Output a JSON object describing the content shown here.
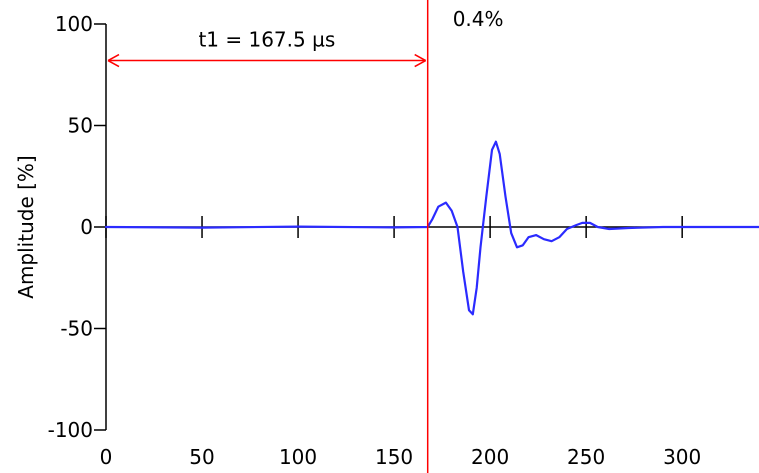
{
  "chart_data": {
    "type": "line",
    "title": "",
    "xlabel": "",
    "ylabel": "Amplitude [%]",
    "xlim": [
      0,
      340
    ],
    "ylim": [
      -100,
      100
    ],
    "x_ticks": [
      0,
      50,
      100,
      150,
      200,
      250,
      300
    ],
    "y_ticks": [
      -100,
      -50,
      0,
      50,
      100
    ],
    "x_tick_labels": [
      "0",
      "50",
      "100",
      "150",
      "200",
      "250",
      "300"
    ],
    "y_tick_labels": [
      "-100",
      "-50",
      "0",
      "50",
      "100"
    ],
    "grid": false,
    "series": [
      {
        "color": "#2b2bff",
        "points": [
          [
            0,
            0
          ],
          [
            50,
            -0.3
          ],
          [
            100,
            0.2
          ],
          [
            150,
            -0.2
          ],
          [
            167.5,
            0
          ],
          [
            170,
            4
          ],
          [
            173,
            10
          ],
          [
            177,
            12
          ],
          [
            180,
            8
          ],
          [
            183,
            0
          ],
          [
            186,
            -22
          ],
          [
            189,
            -41
          ],
          [
            191,
            -43
          ],
          [
            193,
            -30
          ],
          [
            195,
            -10
          ],
          [
            198,
            15
          ],
          [
            201,
            38
          ],
          [
            203,
            42
          ],
          [
            205,
            36
          ],
          [
            208,
            15
          ],
          [
            211,
            -3
          ],
          [
            214,
            -10
          ],
          [
            217,
            -9
          ],
          [
            220,
            -5
          ],
          [
            224,
            -4
          ],
          [
            228,
            -6
          ],
          [
            232,
            -7
          ],
          [
            236,
            -5
          ],
          [
            240,
            -1
          ],
          [
            245,
            1
          ],
          [
            248,
            2
          ],
          [
            252,
            2
          ],
          [
            256,
            0
          ],
          [
            262,
            -1
          ],
          [
            272,
            -0.5
          ],
          [
            290,
            0
          ],
          [
            320,
            0
          ],
          [
            340,
            0
          ]
        ]
      }
    ],
    "annotations": {
      "marker_x": 167.5,
      "marker_line_color": "#ff0000",
      "interval_label": "t1 = 167.5 µs",
      "interval_from": 0,
      "interval_to": 167.5,
      "interval_y": 82,
      "marker_value_label": "0.4%"
    }
  }
}
